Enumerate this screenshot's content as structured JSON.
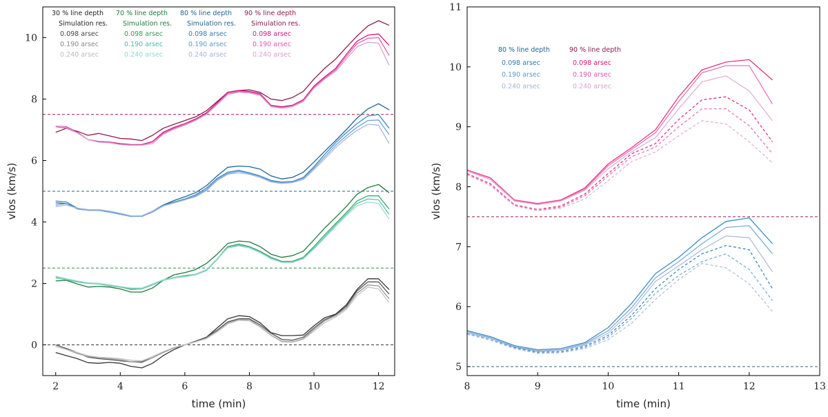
{
  "chart_data": [
    {
      "type": "line",
      "panel": "left",
      "xlabel": "time (min)",
      "ylabel": "vlos (km/s)",
      "xlim": [
        1.6,
        12.5
      ],
      "ylim": [
        -1.0,
        11.0
      ],
      "xticks": [
        2,
        4,
        6,
        8,
        10,
        12
      ],
      "yticks": [
        0,
        2,
        4,
        6,
        8,
        10
      ],
      "x": [
        2.0,
        2.33,
        2.67,
        3.0,
        3.33,
        3.67,
        4.0,
        4.33,
        4.67,
        5.0,
        5.33,
        5.67,
        6.0,
        6.33,
        6.67,
        7.0,
        7.33,
        7.67,
        8.0,
        8.33,
        8.67,
        9.0,
        9.33,
        9.67,
        10.0,
        10.33,
        10.67,
        11.0,
        11.33,
        11.67,
        12.0,
        12.33
      ],
      "legend_columns": [
        {
          "title": "30 % line depth",
          "subtitle": "Simulation res.",
          "entries": [
            "0.098 arsec",
            "0.190 arsec",
            "0.240 arsec"
          ],
          "title_color": "#222222",
          "colors": [
            "#444444",
            "#888888",
            "#bbbbbb"
          ]
        },
        {
          "title": "70 % line depth",
          "subtitle": "Simulation res.",
          "entries": [
            "0.098 arsec",
            "0.190 arsec",
            "0.240 arsec"
          ],
          "title_color": "#1f7a3e",
          "colors": [
            "#2e9d57",
            "#4cb9a0",
            "#8fd6d2"
          ]
        },
        {
          "title": "80 % line depth",
          "subtitle": "Simulation res.",
          "entries": [
            "0.098 arsec",
            "0.190 arsec",
            "0.240 arsec"
          ],
          "title_color": "#1f6391",
          "colors": [
            "#2b7bb9",
            "#5d97cc",
            "#a4b4dc"
          ]
        },
        {
          "title": "90 % line depth",
          "subtitle": "Simulation res.",
          "entries": [
            "0.098 arsec",
            "0.190 arsec",
            "0.240 arsec"
          ],
          "title_color": "#8c1a4b",
          "colors": [
            "#d4157f",
            "#e056b2",
            "#d9a0d4"
          ]
        }
      ],
      "reference_lines": [
        {
          "y": 0.0,
          "color": "#333333"
        },
        {
          "y": 2.5,
          "color": "#2e8b48"
        },
        {
          "y": 5.0,
          "color": "#1f6391"
        },
        {
          "y": 7.5,
          "color": "#9b1850"
        }
      ],
      "series": [
        {
          "name": "30% sim",
          "color": "#333333",
          "values": [
            -0.25,
            -0.35,
            -0.45,
            -0.58,
            -0.6,
            -0.57,
            -0.6,
            -0.7,
            -0.75,
            -0.6,
            -0.35,
            -0.15,
            0.0,
            0.12,
            0.25,
            0.55,
            0.85,
            0.95,
            0.92,
            0.72,
            0.4,
            0.3,
            0.3,
            0.32,
            0.62,
            0.88,
            1.0,
            1.3,
            1.8,
            2.15,
            2.15,
            1.8
          ]
        },
        {
          "name": "30% 0.098",
          "color": "#555555",
          "values": [
            0.0,
            -0.12,
            -0.25,
            -0.4,
            -0.45,
            -0.48,
            -0.52,
            -0.55,
            -0.55,
            -0.42,
            -0.25,
            -0.1,
            0.0,
            0.1,
            0.25,
            0.48,
            0.75,
            0.85,
            0.85,
            0.65,
            0.38,
            0.18,
            0.15,
            0.25,
            0.55,
            0.82,
            0.98,
            1.25,
            1.75,
            2.05,
            2.05,
            1.65
          ]
        },
        {
          "name": "30% 0.190",
          "color": "#999999",
          "values": [
            -0.05,
            -0.15,
            -0.28,
            -0.38,
            -0.42,
            -0.45,
            -0.48,
            -0.55,
            -0.58,
            -0.42,
            -0.25,
            -0.1,
            0.0,
            0.1,
            0.22,
            0.45,
            0.72,
            0.82,
            0.82,
            0.6,
            0.32,
            0.12,
            0.1,
            0.2,
            0.5,
            0.78,
            0.95,
            1.2,
            1.68,
            1.95,
            1.92,
            1.5
          ]
        },
        {
          "name": "30% 0.240",
          "color": "#c4c4c4",
          "values": [
            -0.05,
            -0.15,
            -0.25,
            -0.35,
            -0.4,
            -0.42,
            -0.45,
            -0.5,
            -0.52,
            -0.38,
            -0.22,
            -0.08,
            0.0,
            0.1,
            0.2,
            0.42,
            0.68,
            0.8,
            0.78,
            0.58,
            0.3,
            0.1,
            0.08,
            0.18,
            0.45,
            0.72,
            0.9,
            1.15,
            1.6,
            1.88,
            1.82,
            1.38
          ]
        },
        {
          "name": "70% sim",
          "color": "#1f7a3e",
          "values": [
            2.08,
            2.1,
            1.98,
            1.88,
            1.9,
            1.88,
            1.82,
            1.72,
            1.72,
            1.85,
            2.1,
            2.28,
            2.35,
            2.45,
            2.65,
            2.95,
            3.3,
            3.38,
            3.35,
            3.2,
            2.95,
            2.85,
            2.9,
            3.05,
            3.42,
            3.8,
            4.15,
            4.5,
            4.9,
            5.12,
            5.22,
            4.95
          ]
        },
        {
          "name": "70% 0.098",
          "color": "#3aa86a",
          "values": [
            2.22,
            2.15,
            2.05,
            2.02,
            2.0,
            1.95,
            1.88,
            1.82,
            1.85,
            1.98,
            2.12,
            2.2,
            2.25,
            2.3,
            2.45,
            2.8,
            3.2,
            3.28,
            3.2,
            3.05,
            2.85,
            2.72,
            2.72,
            2.85,
            3.2,
            3.58,
            3.95,
            4.3,
            4.68,
            4.85,
            4.85,
            4.42
          ]
        },
        {
          "name": "70% 0.190",
          "color": "#5cc2a4",
          "values": [
            2.18,
            2.12,
            2.05,
            2.0,
            1.98,
            1.92,
            1.88,
            1.8,
            1.82,
            1.95,
            2.1,
            2.18,
            2.22,
            2.28,
            2.42,
            2.78,
            3.18,
            3.25,
            3.18,
            3.02,
            2.82,
            2.7,
            2.7,
            2.82,
            3.15,
            3.52,
            3.9,
            4.25,
            4.6,
            4.75,
            4.72,
            4.25
          ]
        },
        {
          "name": "70% 0.240",
          "color": "#a0dbd6",
          "values": [
            2.2,
            2.15,
            2.08,
            2.02,
            2.0,
            1.95,
            1.9,
            1.85,
            1.85,
            1.98,
            2.12,
            2.2,
            2.22,
            2.3,
            2.45,
            2.8,
            3.15,
            3.22,
            3.15,
            3.0,
            2.8,
            2.68,
            2.68,
            2.8,
            3.12,
            3.48,
            3.85,
            4.2,
            4.52,
            4.65,
            4.6,
            4.1
          ]
        },
        {
          "name": "80% sim",
          "color": "#1f6391",
          "values": [
            4.62,
            4.6,
            4.45,
            4.38,
            4.38,
            4.32,
            4.25,
            4.18,
            4.2,
            4.35,
            4.55,
            4.7,
            4.82,
            4.95,
            5.18,
            5.5,
            5.78,
            5.82,
            5.8,
            5.72,
            5.5,
            5.4,
            5.45,
            5.62,
            5.95,
            6.3,
            6.65,
            7.0,
            7.38,
            7.68,
            7.85,
            7.65
          ]
        },
        {
          "name": "80% 0.098",
          "color": "#3b8ac4",
          "values": [
            4.68,
            4.65,
            4.45,
            4.4,
            4.4,
            4.35,
            4.28,
            4.2,
            4.18,
            4.35,
            4.55,
            4.65,
            4.75,
            4.88,
            5.1,
            5.42,
            5.62,
            5.68,
            5.6,
            5.5,
            5.35,
            5.3,
            5.32,
            5.45,
            5.8,
            6.2,
            6.58,
            6.9,
            7.2,
            7.45,
            7.5,
            7.05
          ]
        },
        {
          "name": "80% 0.190",
          "color": "#6ba2d4",
          "values": [
            4.55,
            4.6,
            4.42,
            4.38,
            4.38,
            4.32,
            4.25,
            4.18,
            4.18,
            4.32,
            4.52,
            4.62,
            4.72,
            4.85,
            5.05,
            5.38,
            5.58,
            5.65,
            5.58,
            5.48,
            5.32,
            5.28,
            5.3,
            5.42,
            5.75,
            6.12,
            6.5,
            6.8,
            7.08,
            7.3,
            7.32,
            6.85
          ]
        },
        {
          "name": "80% 0.240",
          "color": "#a8b8dc",
          "values": [
            4.5,
            4.55,
            4.45,
            4.4,
            4.4,
            4.35,
            4.28,
            4.2,
            4.2,
            4.35,
            4.52,
            4.62,
            4.72,
            4.82,
            5.02,
            5.35,
            5.55,
            5.6,
            5.55,
            5.45,
            5.3,
            5.25,
            5.28,
            5.38,
            5.7,
            6.05,
            6.42,
            6.72,
            6.98,
            7.18,
            7.15,
            6.55
          ]
        },
        {
          "name": "90% sim",
          "color": "#8c1a4b",
          "values": [
            6.92,
            7.05,
            6.95,
            6.82,
            6.88,
            6.8,
            6.72,
            6.7,
            6.65,
            6.82,
            7.05,
            7.18,
            7.3,
            7.42,
            7.62,
            7.92,
            8.22,
            8.28,
            8.3,
            8.22,
            8.0,
            7.95,
            8.05,
            8.25,
            8.65,
            9.0,
            9.3,
            9.68,
            10.05,
            10.38,
            10.55,
            10.4
          ]
        },
        {
          "name": "90% 0.098",
          "color": "#d4157f",
          "values": [
            7.12,
            7.1,
            6.92,
            6.68,
            6.62,
            6.6,
            6.55,
            6.52,
            6.52,
            6.62,
            6.92,
            7.08,
            7.2,
            7.35,
            7.55,
            7.88,
            8.22,
            8.28,
            8.25,
            8.18,
            7.8,
            7.75,
            7.8,
            7.98,
            8.42,
            8.72,
            9.0,
            9.45,
            9.88,
            10.08,
            10.12,
            9.75
          ]
        },
        {
          "name": "90% 0.190",
          "color": "#e060b4",
          "values": [
            7.1,
            7.05,
            6.9,
            6.68,
            6.6,
            6.58,
            6.52,
            6.5,
            6.5,
            6.6,
            6.88,
            7.05,
            7.18,
            7.32,
            7.52,
            7.85,
            8.18,
            8.25,
            8.22,
            8.15,
            7.78,
            7.72,
            7.78,
            7.95,
            8.38,
            8.68,
            8.95,
            9.38,
            9.8,
            9.98,
            10.0,
            9.42
          ]
        },
        {
          "name": "90% 0.240",
          "color": "#d8a2d2",
          "values": [
            7.12,
            7.08,
            6.9,
            6.68,
            6.6,
            6.58,
            6.52,
            6.5,
            6.5,
            6.55,
            6.85,
            7.02,
            7.15,
            7.3,
            7.5,
            7.82,
            8.15,
            8.22,
            8.2,
            8.12,
            7.75,
            7.7,
            7.75,
            7.92,
            8.35,
            8.65,
            8.9,
            9.3,
            9.7,
            9.85,
            9.82,
            9.1
          ]
        }
      ]
    },
    {
      "type": "line",
      "panel": "right",
      "xlabel": "time (min)",
      "ylabel": "vlos (km/s)",
      "xlim": [
        8,
        13
      ],
      "ylim": [
        4.85,
        11.0
      ],
      "xticks": [
        8,
        9,
        10,
        11,
        12,
        13
      ],
      "yticks": [
        5,
        6,
        7,
        8,
        9,
        10,
        11
      ],
      "x": [
        8.0,
        8.33,
        8.67,
        9.0,
        9.33,
        9.67,
        10.0,
        10.33,
        10.67,
        11.0,
        11.33,
        11.67,
        12.0,
        12.33
      ],
      "legend_columns": [
        {
          "title": "80 % line depth",
          "entries": [
            "0.098 arsec",
            "0.190 arsec",
            "0.240 arsec"
          ],
          "title_color": "#1f6391",
          "colors": [
            "#2b7bb9",
            "#5d97cc",
            "#a4b4dc"
          ]
        },
        {
          "title": "90 % line depth",
          "entries": [
            "0.098 arsec",
            "0.190 arsec",
            "0.240 arsec"
          ],
          "title_color": "#8c1a4b",
          "colors": [
            "#d4157f",
            "#e056b2",
            "#d9a0d4"
          ]
        }
      ],
      "reference_lines": [
        {
          "y": 5.0,
          "color": "#1f6391"
        },
        {
          "y": 7.5,
          "color": "#9b1850"
        }
      ],
      "series": [
        {
          "name": "80% 0.098 solid",
          "color": "#3b8ac4",
          "dash": false,
          "values": [
            5.6,
            5.5,
            5.35,
            5.28,
            5.3,
            5.4,
            5.65,
            6.05,
            6.55,
            6.82,
            7.15,
            7.42,
            7.48,
            7.05
          ]
        },
        {
          "name": "80% 0.190 solid",
          "color": "#7aaed8",
          "dash": false,
          "values": [
            5.58,
            5.48,
            5.33,
            5.26,
            5.28,
            5.38,
            5.6,
            5.98,
            6.48,
            6.75,
            7.05,
            7.32,
            7.35,
            6.88
          ]
        },
        {
          "name": "80% 0.240 solid",
          "color": "#b2bedf",
          "dash": false,
          "values": [
            5.56,
            5.47,
            5.32,
            5.25,
            5.27,
            5.36,
            5.56,
            5.92,
            6.42,
            6.68,
            6.95,
            7.18,
            7.15,
            6.58
          ]
        },
        {
          "name": "80% 0.098 dashed",
          "color": "#3b8ac4",
          "dash": true,
          "values": [
            5.55,
            5.45,
            5.32,
            5.24,
            5.25,
            5.34,
            5.52,
            5.85,
            6.3,
            6.62,
            6.88,
            7.02,
            6.95,
            6.3
          ]
        },
        {
          "name": "80% 0.190 dashed",
          "color": "#7aaed8",
          "dash": true,
          "values": [
            5.55,
            5.45,
            5.31,
            5.23,
            5.24,
            5.32,
            5.49,
            5.8,
            6.22,
            6.52,
            6.75,
            6.88,
            6.62,
            6.1
          ]
        },
        {
          "name": "80% 0.240 dashed",
          "color": "#b2bedf",
          "dash": true,
          "values": [
            5.54,
            5.44,
            5.3,
            5.22,
            5.23,
            5.3,
            5.45,
            5.72,
            6.12,
            6.45,
            6.72,
            6.65,
            6.38,
            5.92
          ]
        },
        {
          "name": "90% 0.098 solid",
          "color": "#e0347f",
          "dash": false,
          "values": [
            8.28,
            8.15,
            7.78,
            7.72,
            7.78,
            7.98,
            8.38,
            8.65,
            8.95,
            9.5,
            9.95,
            10.08,
            10.12,
            9.78
          ]
        },
        {
          "name": "90% 0.190 solid",
          "color": "#ea74b8",
          "dash": false,
          "values": [
            8.27,
            8.14,
            7.77,
            7.71,
            7.77,
            7.96,
            8.35,
            8.62,
            8.9,
            9.42,
            9.9,
            10.02,
            10.02,
            9.38
          ]
        },
        {
          "name": "90% 0.240 solid",
          "color": "#e2b0d6",
          "dash": false,
          "values": [
            8.26,
            8.12,
            7.76,
            7.7,
            7.76,
            7.94,
            8.3,
            8.58,
            8.82,
            9.3,
            9.75,
            9.85,
            9.6,
            9.1
          ]
        },
        {
          "name": "90% 0.098 dashed",
          "color": "#e0347f",
          "dash": true,
          "values": [
            8.22,
            8.05,
            7.7,
            7.62,
            7.68,
            7.88,
            8.22,
            8.55,
            8.72,
            9.12,
            9.45,
            9.5,
            9.28,
            8.75
          ]
        },
        {
          "name": "90% 0.190 dashed",
          "color": "#ea74b8",
          "dash": true,
          "values": [
            8.21,
            8.04,
            7.69,
            7.61,
            7.66,
            7.85,
            8.18,
            8.5,
            8.66,
            9.0,
            9.3,
            9.3,
            9.02,
            8.55
          ]
        },
        {
          "name": "90% 0.240 dashed",
          "color": "#e2b0d6",
          "dash": true,
          "values": [
            8.2,
            8.02,
            7.68,
            7.6,
            7.64,
            7.8,
            8.1,
            8.42,
            8.58,
            8.85,
            9.1,
            9.05,
            8.75,
            8.4
          ]
        }
      ]
    }
  ]
}
